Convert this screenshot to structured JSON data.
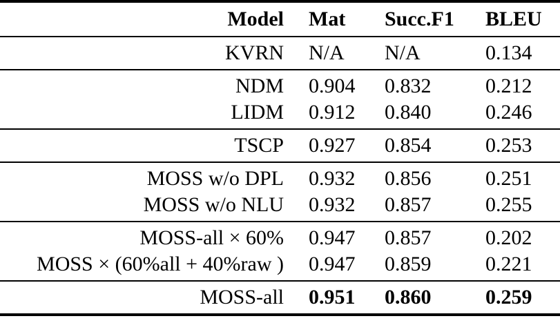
{
  "table": {
    "colors": {
      "background": "#ffffff",
      "text": "#000000",
      "rule": "#000000"
    },
    "header": {
      "model": "Model",
      "mat": "Mat",
      "succ_f1": "Succ.F1",
      "bleu": "BLEU"
    },
    "groups": [
      {
        "rows": [
          {
            "model": "KVRN",
            "mat": "N/A",
            "succ_f1": "N/A",
            "bleu": "0.134"
          }
        ]
      },
      {
        "rows": [
          {
            "model": "NDM",
            "mat": "0.904",
            "succ_f1": "0.832",
            "bleu": "0.212"
          },
          {
            "model": "LIDM",
            "mat": "0.912",
            "succ_f1": "0.840",
            "bleu": "0.246"
          }
        ]
      },
      {
        "rows": [
          {
            "model": "TSCP",
            "mat": "0.927",
            "succ_f1": "0.854",
            "bleu": "0.253"
          }
        ]
      },
      {
        "rows": [
          {
            "model": "MOSS w/o DPL",
            "mat": "0.932",
            "succ_f1": "0.856",
            "bleu": "0.251"
          },
          {
            "model": "MOSS w/o NLU",
            "mat": "0.932",
            "succ_f1": "0.857",
            "bleu": "0.255"
          }
        ]
      },
      {
        "rows": [
          {
            "model": "MOSS-all × 60%",
            "mat": "0.947",
            "succ_f1": "0.857",
            "bleu": "0.202"
          },
          {
            "model": "MOSS × (60%all + 40%raw )",
            "mat": "0.947",
            "succ_f1": "0.859",
            "bleu": "0.221"
          }
        ]
      },
      {
        "values_bold": true,
        "rows": [
          {
            "model": "MOSS-all",
            "mat": "0.951",
            "succ_f1": "0.860",
            "bleu": "0.259"
          }
        ]
      }
    ]
  }
}
